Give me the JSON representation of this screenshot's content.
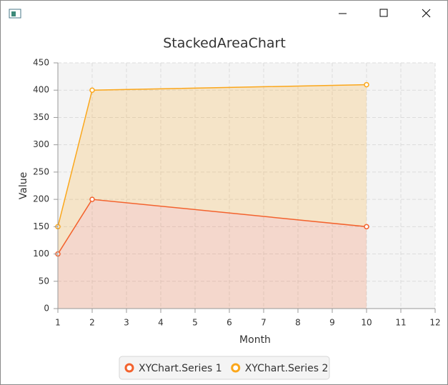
{
  "chart_data": {
    "type": "stacked_area",
    "title": "StackedAreaChart",
    "x_label": "Month",
    "y_label": "Value",
    "x": [
      1,
      2,
      10
    ],
    "series": [
      {
        "name": "XYChart.Series 1",
        "color": "#f3622d",
        "values": [
          100,
          200,
          150
        ]
      },
      {
        "name": "XYChart.Series 2",
        "color": "#fba71b",
        "values": [
          50,
          200,
          260
        ]
      }
    ],
    "xlim": [
      1,
      12
    ],
    "xticks": [
      1,
      2,
      3,
      4,
      5,
      6,
      7,
      8,
      9,
      10,
      11,
      12
    ],
    "ylim": [
      0,
      450
    ],
    "yticks": [
      0,
      50,
      100,
      150,
      200,
      250,
      300,
      350,
      400,
      450
    ],
    "grid": true
  }
}
